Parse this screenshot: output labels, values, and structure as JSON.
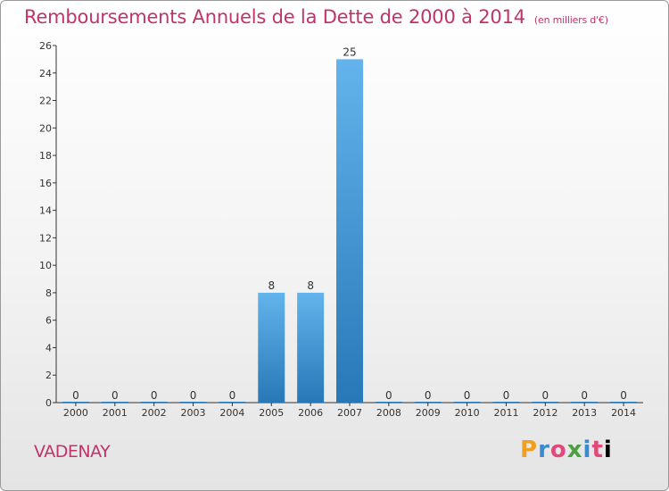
{
  "header": {
    "title": "Remboursements Annuels de la Dette de 2000 à 2014",
    "unit": "(en milliers d'€)"
  },
  "footer": {
    "town": "VADENAY",
    "logo_text": "Proxiti"
  },
  "colors": {
    "title": "#c0336b",
    "bar_top": "#63b3ec",
    "bar_bottom": "#2878b8"
  },
  "chart_data": {
    "type": "bar",
    "title": "Remboursements Annuels de la Dette de 2000 à 2014",
    "xlabel": "",
    "ylabel": "",
    "categories": [
      "2000",
      "2001",
      "2002",
      "2003",
      "2004",
      "2005",
      "2006",
      "2007",
      "2008",
      "2009",
      "2010",
      "2011",
      "2012",
      "2013",
      "2014"
    ],
    "values": [
      0,
      0,
      0,
      0,
      0,
      8,
      8,
      25,
      0,
      0,
      0,
      0,
      0,
      0,
      0
    ],
    "ylim": [
      0,
      26
    ],
    "yticks": [
      0,
      2,
      4,
      6,
      8,
      10,
      12,
      14,
      16,
      18,
      20,
      22,
      24,
      26
    ],
    "grid": false,
    "legend": "none"
  }
}
